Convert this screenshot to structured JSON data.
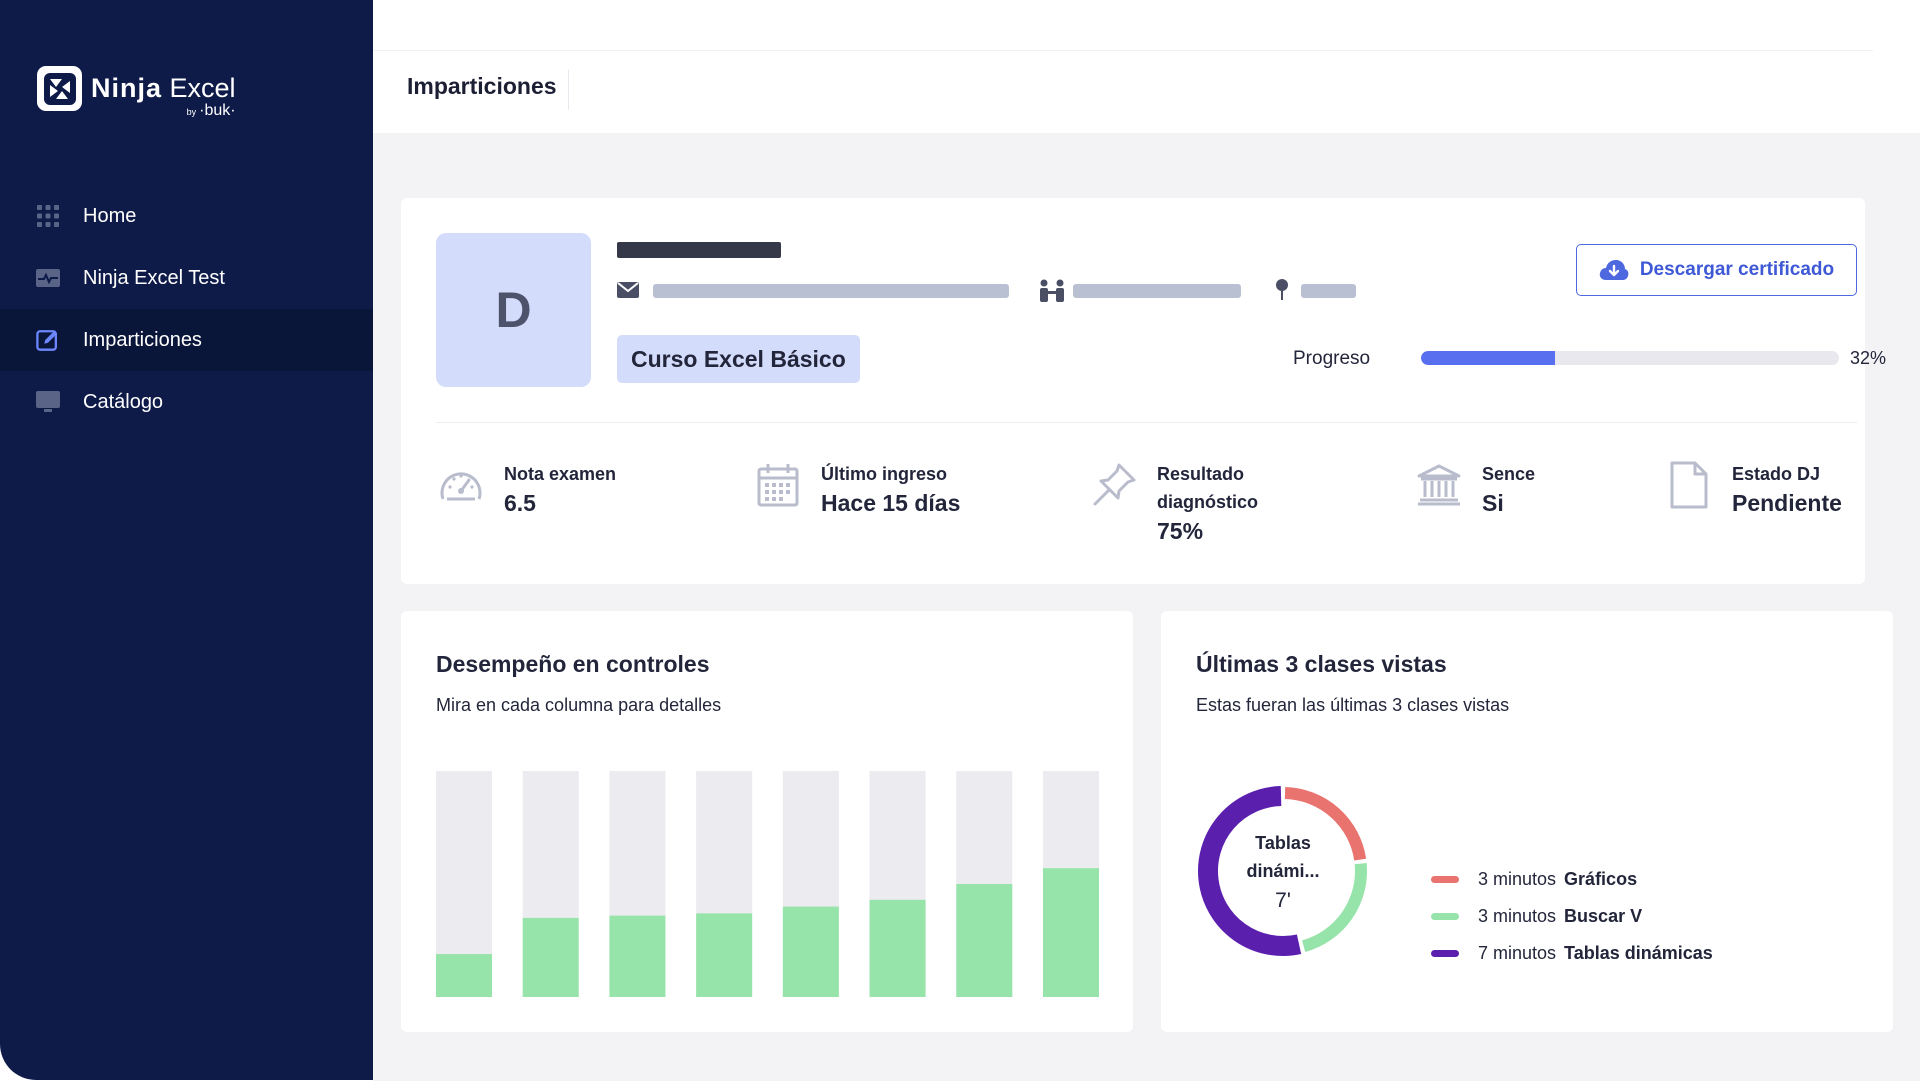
{
  "app": {
    "brand_name": "Ninja",
    "brand_suffix": "Excel",
    "brand_by": "by",
    "brand_partner": "·buk·"
  },
  "sidebar": {
    "items": [
      {
        "label": "Home",
        "icon": "grid-icon"
      },
      {
        "label": "Ninja Excel Test",
        "icon": "pulse-icon"
      },
      {
        "label": "Imparticiones",
        "icon": "edit-icon",
        "active": true
      },
      {
        "label": "Catálogo",
        "icon": "monitor-icon"
      }
    ]
  },
  "header": {
    "title": "Imparticiones"
  },
  "profile": {
    "avatar_initial": "D",
    "course": "Curso Excel Básico",
    "download_label": "Descargar certificado",
    "progress_label": "Progreso",
    "progress_text": "32%",
    "progress_fraction": 0.32
  },
  "stats": [
    {
      "label": "Nota examen",
      "value": "6.5",
      "icon": "speedometer-icon"
    },
    {
      "label": "Último ingreso",
      "value": "Hace 15 días",
      "icon": "calendar-icon"
    },
    {
      "label": "Resultado diagnóstico",
      "value": "75%",
      "icon": "pin-icon"
    },
    {
      "label": "Sence",
      "value": "Si",
      "icon": "bank-icon"
    },
    {
      "label": "Estado DJ",
      "value": "Pendiente",
      "icon": "document-icon"
    }
  ],
  "performance": {
    "title": "Desempeño en controles",
    "subtitle": "Mira en cada columna para detalles"
  },
  "recent": {
    "title": "Últimas 3 clases vistas",
    "subtitle": "Estas fueran las últimas 3 clases vistas",
    "center_name": "Tablas dinámi...",
    "center_value": "7'",
    "legend": [
      {
        "duration": "3 minutos",
        "name": "Gráficos",
        "color": "#e8736f"
      },
      {
        "duration": "3 minutos",
        "name": "Buscar V",
        "color": "#97e4aa"
      },
      {
        "duration": "7 minutos",
        "name": "Tablas dinámicas",
        "color": "#5b1fae"
      }
    ]
  },
  "colors": {
    "sidebar_bg": "#0e1b48",
    "accent": "#4e68e0",
    "bar_fill": "#97e4aa",
    "bar_track": "#ebebf0"
  },
  "chart_data": [
    {
      "type": "bar",
      "values": [
        0.19,
        0.35,
        0.36,
        0.37,
        0.4,
        0.43,
        0.5,
        0.57
      ],
      "ylim": [
        0,
        1
      ]
    },
    {
      "type": "pie",
      "categories": [
        "Gráficos",
        "Buscar V",
        "Tablas dinámicas"
      ],
      "values": [
        3,
        3,
        7
      ]
    }
  ]
}
